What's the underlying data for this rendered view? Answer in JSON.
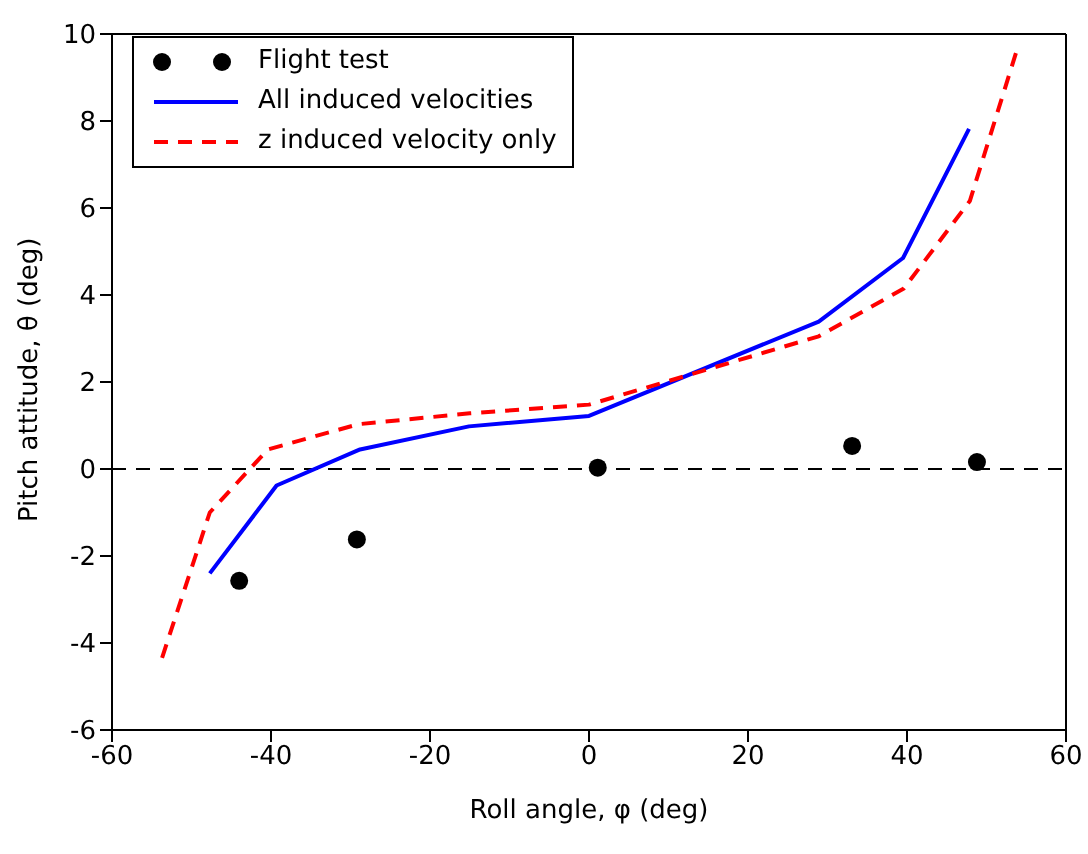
{
  "chart_data": {
    "type": "line",
    "xlabel": "Roll angle, φ (deg)",
    "ylabel": "Pitch attitude, θ (deg)",
    "xlim": [
      -60,
      60
    ],
    "ylim": [
      -6,
      10
    ],
    "xticks": [
      -60,
      -40,
      -20,
      0,
      20,
      40,
      60
    ],
    "yticks": [
      -6,
      -4,
      -2,
      0,
      2,
      4,
      6,
      8,
      10
    ],
    "grid": false,
    "legend": "top left",
    "series": [
      {
        "name": "Flight test",
        "type": "scatter",
        "color": "#000000",
        "marker": "circle",
        "x": [
          -44,
          -29.2,
          1.1,
          33.1,
          48.8
        ],
        "values": [
          -2.57,
          -1.62,
          0.03,
          0.53,
          0.16
        ]
      },
      {
        "name": "All induced velocities",
        "type": "line",
        "color": "#0000ff",
        "marker": "none",
        "line_style": "solid",
        "x": [
          -47.7,
          -39.3,
          -28.8,
          -15.1,
          0,
          28.9,
          39.5,
          47.8
        ],
        "values": [
          -2.4,
          -0.38,
          0.45,
          0.98,
          1.22,
          3.39,
          4.85,
          7.82
        ]
      },
      {
        "name": "z induced velocity only",
        "type": "line",
        "color": "#ff0000",
        "marker": "none",
        "line_style": "dashed",
        "x": [
          -53.7,
          -47.7,
          -40.4,
          -29,
          -15,
          0,
          28.9,
          39.6,
          47.9,
          53.7
        ],
        "values": [
          -4.34,
          -1.0,
          0.45,
          1.03,
          1.28,
          1.48,
          3.05,
          4.15,
          6.16,
          9.56
        ]
      }
    ],
    "ref_lines": [
      {
        "axis": "y",
        "value": 0,
        "color": "#000000",
        "line_style": "dashed"
      }
    ]
  }
}
